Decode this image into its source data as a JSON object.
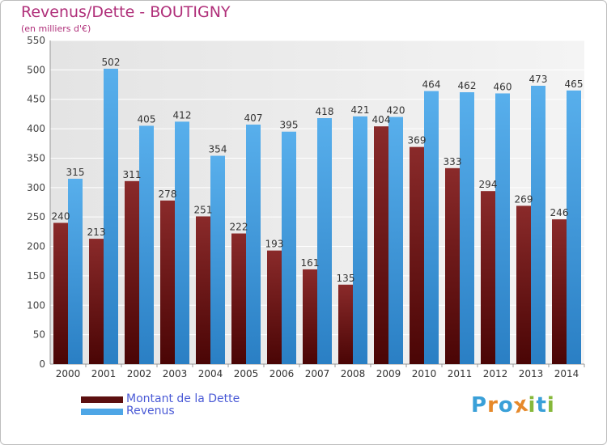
{
  "header": {
    "title": "Revenus/Dette - BOUTIGNY",
    "subtitle": "(en milliers d'€)"
  },
  "chart_data": {
    "type": "bar",
    "title": "Revenus/Dette - BOUTIGNY",
    "subtitle": "(en milliers d'€)",
    "xlabel": "",
    "ylabel": "",
    "ylim": [
      0,
      550
    ],
    "yticks": [
      "0",
      "50",
      "100",
      "150",
      "200",
      "250",
      "300",
      "350",
      "400",
      "450",
      "500",
      "550"
    ],
    "grid": true,
    "legend_position": "bottom-left",
    "categories": [
      "2000",
      "2001",
      "2002",
      "2003",
      "2004",
      "2005",
      "2006",
      "2007",
      "2008",
      "2009",
      "2010",
      "2011",
      "2012",
      "2013",
      "2014"
    ],
    "series": [
      {
        "name": "Montant de la Dette",
        "color": "#7a2020",
        "values": [
          240,
          213,
          311,
          278,
          251,
          222,
          193,
          161,
          135,
          404,
          369,
          333,
          294,
          269,
          246
        ],
        "labels": [
          "240",
          "213",
          "311",
          "278",
          "251",
          "222",
          "193",
          "161",
          "135",
          "404",
          "369",
          "333",
          "294",
          "269",
          "246"
        ]
      },
      {
        "name": "Revenus",
        "color": "#4ea6e6",
        "values": [
          315,
          502,
          405,
          412,
          354,
          407,
          395,
          418,
          421,
          420,
          464,
          462,
          460,
          473,
          465
        ],
        "labels": [
          "315",
          "502",
          "405",
          "412",
          "354",
          "407",
          "395",
          "418",
          "421",
          "420",
          "464",
          "462",
          "460",
          "473",
          "465"
        ]
      }
    ]
  },
  "legend": {
    "items": [
      {
        "label": "Montant de la Dette",
        "color": "#5c0f0f"
      },
      {
        "label": "Revenus",
        "color": "#4ea6e6"
      }
    ]
  },
  "logo": {
    "text": "Proxiti",
    "letters": [
      "P",
      "r",
      "o",
      "x",
      "i",
      "t",
      "i"
    ],
    "colors": [
      "#3aa0d8",
      "#e6892a",
      "#3aa0d8",
      "#e6892a",
      "#86b83a",
      "#3aa0d8",
      "#86b83a"
    ]
  }
}
